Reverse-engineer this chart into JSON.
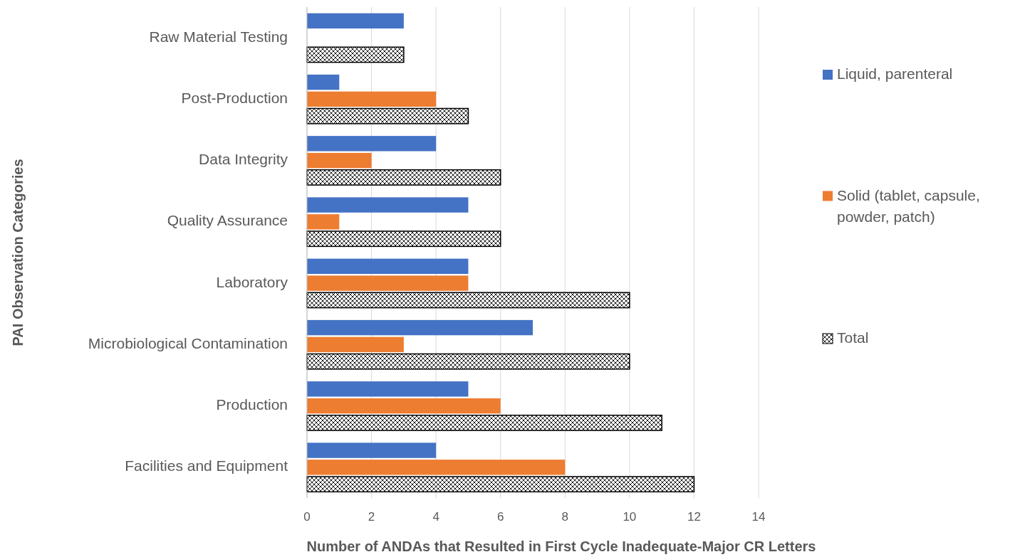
{
  "chart_data": {
    "type": "bar",
    "orientation": "horizontal",
    "xlabel": "Number of ANDAs that Resulted in First Cycle Inadequate-Major CR Letters",
    "ylabel": "PAI Observation Categories",
    "categories": [
      "Raw Material Testing",
      "Post-Production",
      "Data Integrity",
      "Quality Assurance",
      "Laboratory",
      "Microbiological Contamination",
      "Production",
      "Facilities and Equipment"
    ],
    "series": [
      {
        "name": "Liquid, parenteral",
        "color": "#4472c4",
        "values": [
          3,
          1,
          4,
          5,
          5,
          7,
          5,
          4
        ]
      },
      {
        "name": "Solid (tablet, capsule, powder, patch)",
        "color": "#ed7d31",
        "values": [
          null,
          4,
          2,
          1,
          5,
          3,
          6,
          8
        ]
      },
      {
        "name": "Total",
        "color": "#000000",
        "values": [
          3,
          5,
          6,
          6,
          10,
          10,
          11,
          12
        ]
      }
    ],
    "xlim": [
      0,
      14
    ],
    "xticks": [
      0,
      2,
      4,
      6,
      8,
      10,
      12,
      14
    ],
    "grid": "x",
    "legend": "right"
  }
}
